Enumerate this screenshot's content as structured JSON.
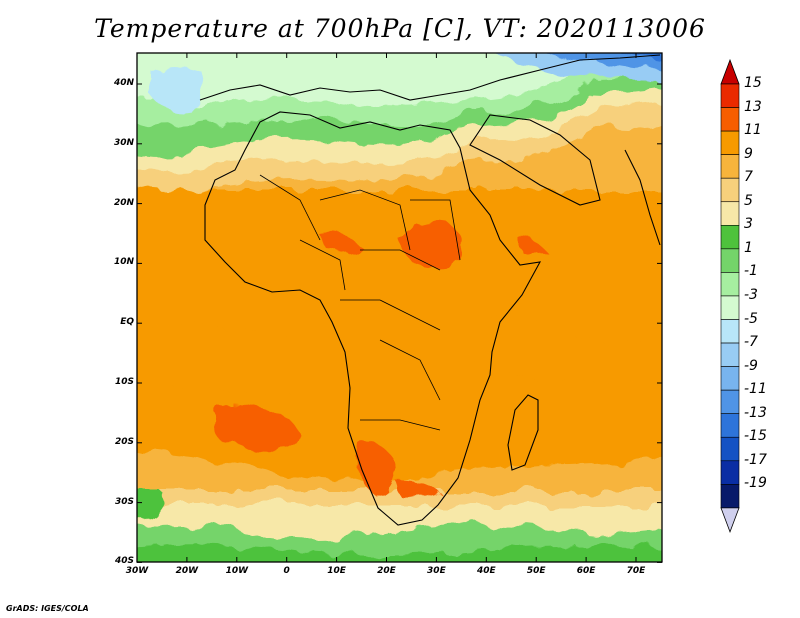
{
  "title": "Temperature at 700hPa [C], VT: 2020113006",
  "footer": "GrADS: IGES/COLA",
  "map": {
    "lon_labels": [
      "30W",
      "20W",
      "10W",
      "0",
      "10E",
      "20E",
      "30E",
      "40E",
      "50E",
      "60E",
      "70E"
    ],
    "lat_labels": [
      "40N",
      "30N",
      "20N",
      "10N",
      "EQ",
      "10S",
      "20S",
      "30S",
      "40S"
    ]
  },
  "colorbar": {
    "labels": [
      "15",
      "13",
      "11",
      "9",
      "7",
      "5",
      "3",
      "1",
      "-1",
      "-3",
      "-5",
      "-7",
      "-9",
      "-11",
      "-13",
      "-15",
      "-17",
      "-19"
    ],
    "colors": [
      "#c80000",
      "#ea2a00",
      "#f75e00",
      "#f79a00",
      "#f7b43c",
      "#f7d07c",
      "#f7e8a8",
      "#4ec23c",
      "#74d46a",
      "#a6eea0",
      "#d4fad0",
      "#b8e6f8",
      "#98ccf4",
      "#78b4ee",
      "#5094e6",
      "#2e74da",
      "#1452c4",
      "#0a2ea4",
      "#081a6a",
      "#d0d0ee"
    ]
  }
}
